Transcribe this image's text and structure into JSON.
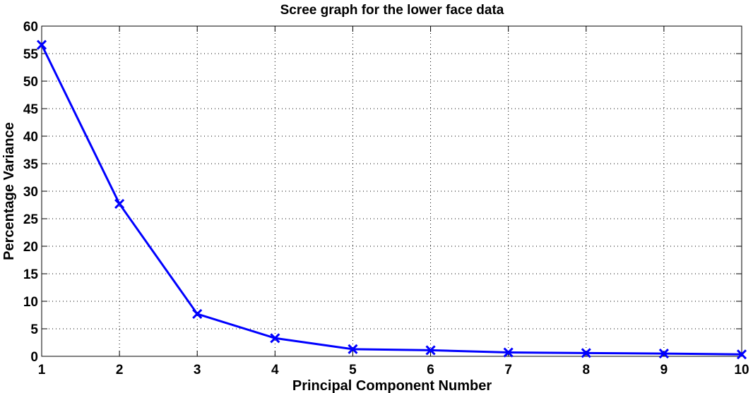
{
  "chart_data": {
    "type": "line",
    "title": "Scree graph for the lower face data",
    "xlabel": "Principal Component Number",
    "ylabel": "Percentage Variance",
    "xlim": [
      1,
      10
    ],
    "ylim": [
      0,
      60
    ],
    "xticks": [
      1,
      2,
      3,
      4,
      5,
      6,
      7,
      8,
      9,
      10
    ],
    "yticks": [
      0,
      5,
      10,
      15,
      20,
      25,
      30,
      35,
      40,
      45,
      50,
      55,
      60
    ],
    "grid": true,
    "marker": "x",
    "color": "#0000ff",
    "series": [
      {
        "x": [
          1,
          2,
          3,
          4,
          5,
          6,
          7,
          8,
          9,
          10
        ],
        "values": [
          56.6,
          27.7,
          7.7,
          3.3,
          1.3,
          1.1,
          0.7,
          0.6,
          0.5,
          0.35
        ]
      }
    ]
  }
}
